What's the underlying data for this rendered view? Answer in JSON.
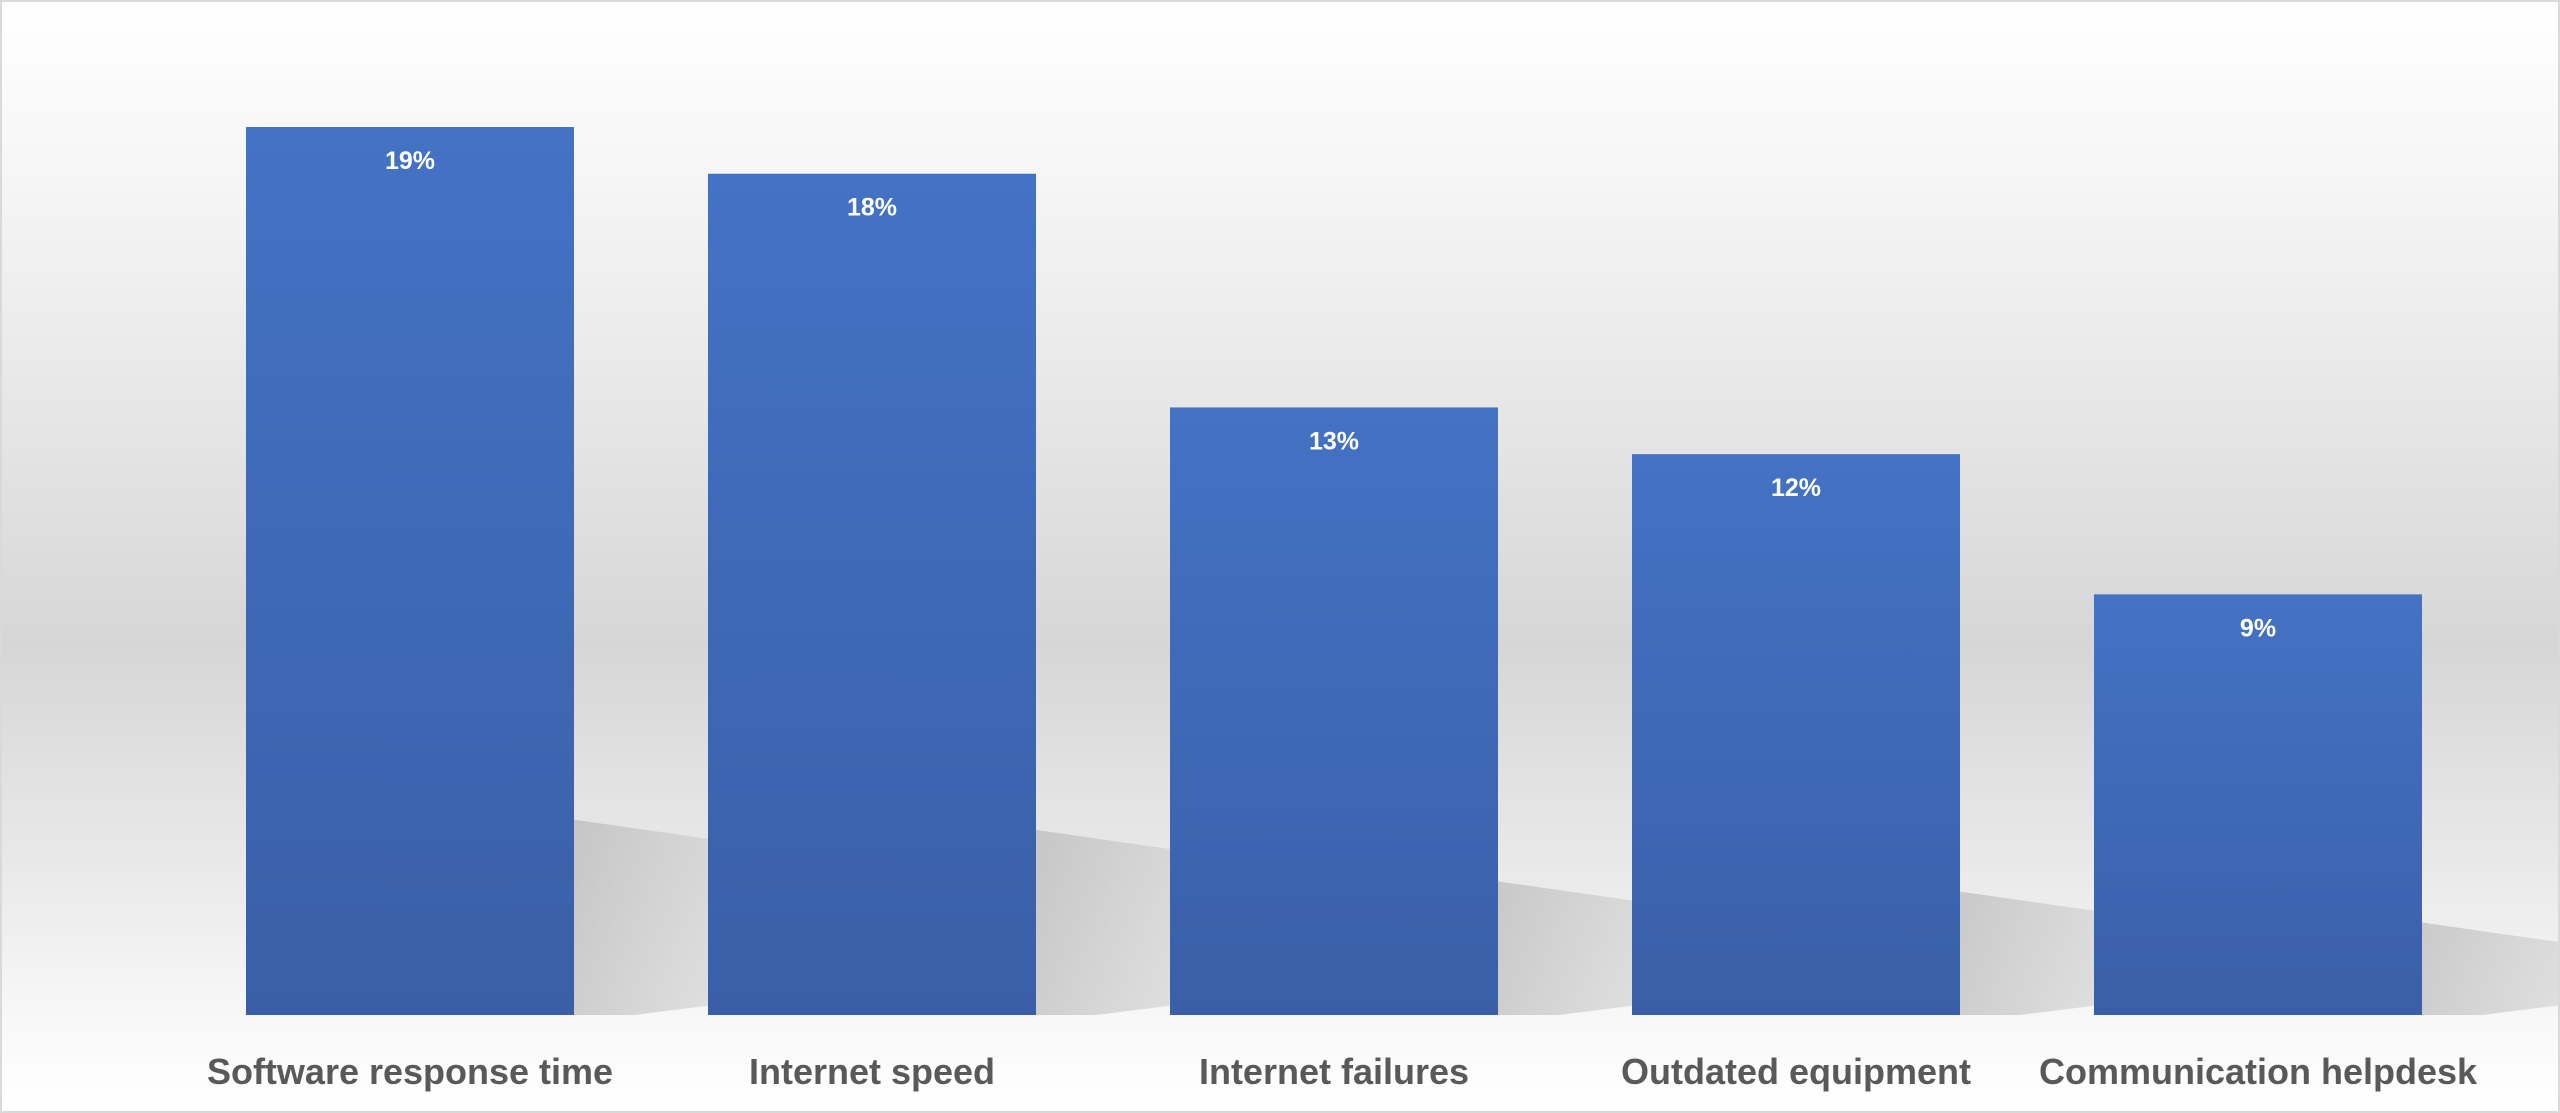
{
  "chart_data": {
    "type": "bar",
    "title": "",
    "xlabel": "",
    "ylabel": "",
    "categories": [
      "Software response time",
      "Internet speed",
      "Internet failures",
      "Outdated equipment",
      "Communication helpdesk"
    ],
    "values": [
      19,
      18,
      13,
      12,
      9
    ],
    "value_labels": [
      "19%",
      "18%",
      "13%",
      "12%",
      "9%"
    ],
    "unit": "%",
    "ylim": [
      0,
      19
    ],
    "grid": false,
    "legend": "none",
    "bar_color": "#4472c4",
    "bar_color_dark": "#3a5fa8",
    "label_color": "#595959",
    "value_label_color": "#ffffff"
  }
}
